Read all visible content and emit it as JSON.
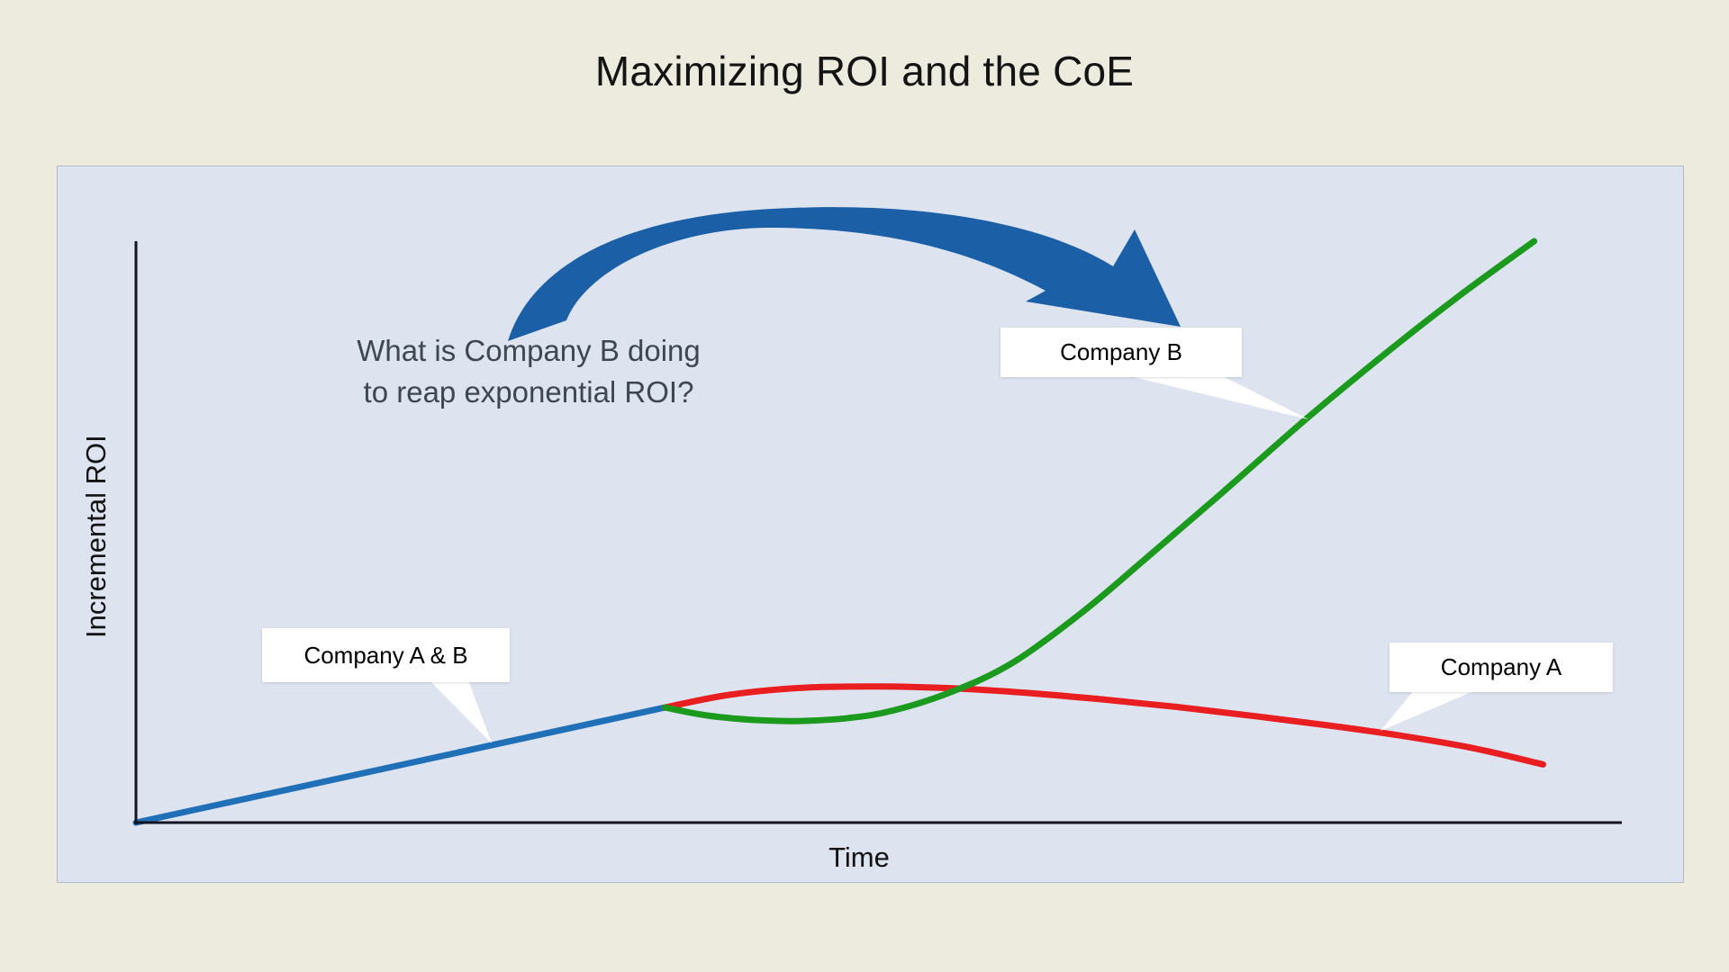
{
  "title": "Maximizing ROI and the CoE",
  "axes": {
    "x_label": "Time",
    "y_label": "Incremental ROI"
  },
  "annotation": {
    "line1": "What is Company B doing",
    "line2": "to reap exponential ROI?"
  },
  "callouts": {
    "company_ab": "Company A & B",
    "company_b": "Company B",
    "company_a": "Company A"
  },
  "colors": {
    "background": "#edebde",
    "panel": "#dee3f0",
    "panel_border": "#b6bac6",
    "axis": "#14141f",
    "blue": "#2070b7",
    "green": "#1b9a1e",
    "red": "#e81e20",
    "arrow_blue": "#1b5fa7",
    "annotation_text": "#3d4752",
    "callout_bg": "#ffffff",
    "title_text": "#141414"
  },
  "chart_data": {
    "type": "line",
    "title": "Maximizing ROI and the CoE",
    "xlabel": "Time",
    "ylabel": "Incremental ROI",
    "x_range": [
      0,
      100
    ],
    "y_range": [
      0,
      100
    ],
    "axis_ticks": "none (conceptual chart, unlabeled axes)",
    "grid": false,
    "legend": "inline white callout labels pointing at each curve",
    "series": [
      {
        "name": "Company A & B",
        "color": "#2070b7",
        "shape": "straight shared segment before the curves diverge",
        "points": [
          [
            0,
            0
          ],
          [
            35.6,
            19.8
          ]
        ]
      },
      {
        "name": "Company A",
        "color": "#e81e20",
        "shape": "gentle hump then slow decline",
        "points": [
          [
            35.6,
            19.8
          ],
          [
            40,
            22.0
          ],
          [
            45,
            23.2
          ],
          [
            50,
            23.4
          ],
          [
            55,
            23.1
          ],
          [
            60,
            22.3
          ],
          [
            65,
            21.2
          ],
          [
            70,
            19.9
          ],
          [
            75,
            18.4
          ],
          [
            80,
            16.8
          ],
          [
            85,
            15.0
          ],
          [
            90,
            12.8
          ],
          [
            94.7,
            10.0
          ]
        ]
      },
      {
        "name": "Company B",
        "color": "#1b9a1e",
        "shape": "small dip then exponential rise",
        "points": [
          [
            35.6,
            19.8
          ],
          [
            38.5,
            18.4
          ],
          [
            42,
            17.6
          ],
          [
            45,
            17.5
          ],
          [
            48,
            18.0
          ],
          [
            51,
            19.3
          ],
          [
            55,
            22.6
          ],
          [
            59,
            27.5
          ],
          [
            63.6,
            36.0
          ],
          [
            68,
            45.5
          ],
          [
            73,
            56.5
          ],
          [
            78.7,
            69.3
          ],
          [
            84,
            80.5
          ],
          [
            89,
            90.5
          ],
          [
            94.1,
            100.0
          ]
        ]
      }
    ],
    "annotations": [
      {
        "type": "text",
        "text": "What is Company B doing to reap exponential ROI?"
      },
      {
        "type": "curved-arrow",
        "text": "thick blue swoosh arrow arcing from the question text toward the Company B label"
      }
    ]
  }
}
